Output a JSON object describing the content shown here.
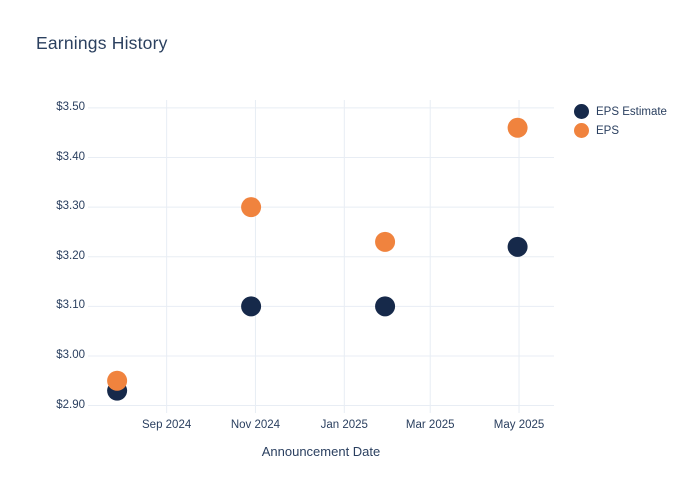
{
  "colors": {
    "background": "#ffffff",
    "title_text": "#2b405f",
    "tick_text": "#2a3f5f",
    "grid": "#e8edf4",
    "eps_estimate": "#16294a",
    "eps": "#f0833e"
  },
  "chart_data": {
    "type": "scatter",
    "title": "Earnings History",
    "xlabel": "Announcement Date",
    "ylabel": "",
    "grid": true,
    "legend_position": "right-top",
    "marker_diameter_px": 20,
    "x_ticks": [
      {
        "date": "2024-09-01",
        "label": "Sep 2024"
      },
      {
        "date": "2024-11-01",
        "label": "Nov 2024"
      },
      {
        "date": "2025-01-01",
        "label": "Jan 2025"
      },
      {
        "date": "2025-03-01",
        "label": "Mar 2025"
      },
      {
        "date": "2025-05-01",
        "label": "May 2025"
      }
    ],
    "y_ticks": [
      {
        "value": 2.9,
        "label": "$2.90"
      },
      {
        "value": 3.0,
        "label": "$3.00"
      },
      {
        "value": 3.1,
        "label": "$3.10"
      },
      {
        "value": 3.2,
        "label": "$3.20"
      },
      {
        "value": 3.3,
        "label": "$3.30"
      },
      {
        "value": 3.4,
        "label": "$3.40"
      },
      {
        "value": 3.5,
        "label": "$3.50"
      }
    ],
    "xlim": [
      "2024-07-09",
      "2025-05-25"
    ],
    "ylim": [
      2.885,
      3.516
    ],
    "x": [
      "2024-07-29",
      "2024-10-29",
      "2025-01-29",
      "2025-04-30"
    ],
    "series": [
      {
        "name": "EPS Estimate",
        "color": "#16294a",
        "values": [
          2.93,
          3.1,
          3.1,
          3.22
        ]
      },
      {
        "name": "EPS",
        "color": "#f0833e",
        "values": [
          2.95,
          3.3,
          3.23,
          3.46
        ]
      }
    ]
  }
}
